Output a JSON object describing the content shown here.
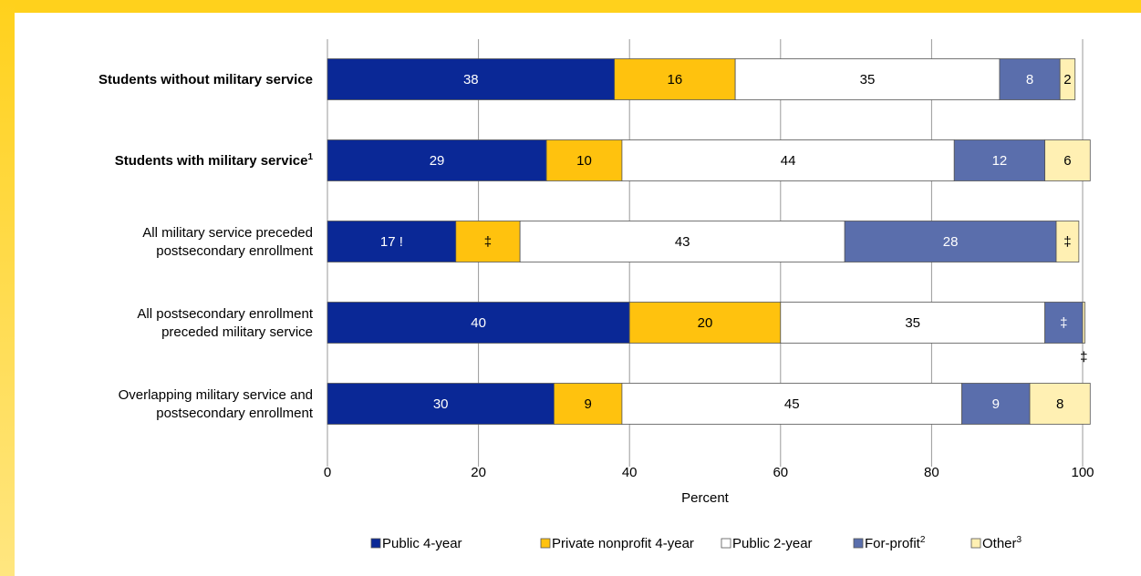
{
  "chart_data": {
    "type": "bar",
    "orientation": "horizontal",
    "stacked": true,
    "xlabel": "Percent",
    "xlim": [
      0,
      100
    ],
    "xticks": [
      0,
      20,
      40,
      60,
      80,
      100
    ],
    "grid": true,
    "legend_position": "bottom",
    "categories": [
      {
        "label": [
          "Students without military service"
        ],
        "bold": true,
        "sup": ""
      },
      {
        "label": [
          "Students with military service"
        ],
        "bold": true,
        "sup": "1"
      },
      {
        "label": [
          "All military service preceded",
          "postsecondary enrollment"
        ],
        "bold": false,
        "sup": ""
      },
      {
        "label": [
          "All postsecondary enrollment",
          "preceded military service"
        ],
        "bold": false,
        "sup": ""
      },
      {
        "label": [
          "Overlapping military service and",
          "postsecondary enrollment"
        ],
        "bold": false,
        "sup": ""
      }
    ],
    "series": [
      {
        "name": "Public 4-year",
        "sup": "",
        "color": "#0a2896",
        "text_color": "#ffffff",
        "values": [
          38,
          29,
          17,
          40,
          30
        ],
        "labels": [
          "38",
          "29",
          "17 !",
          "40",
          "30"
        ]
      },
      {
        "name": "Private nonprofit 4-year",
        "sup": "",
        "color": "#ffc20e",
        "text_color": "#000000",
        "values": [
          16,
          10,
          8.5,
          20,
          9
        ],
        "labels": [
          "16",
          "10",
          "‡",
          "20",
          "9"
        ]
      },
      {
        "name": "Public 2-year",
        "sup": "",
        "color": "#ffffff",
        "text_color": "#000000",
        "values": [
          35,
          44,
          43,
          35,
          45
        ],
        "labels": [
          "35",
          "44",
          "43",
          "35",
          "45"
        ]
      },
      {
        "name": "For-profit",
        "sup": "2",
        "color": "#5a6eac",
        "text_color": "#ffffff",
        "values": [
          8,
          12,
          28,
          5,
          9
        ],
        "labels": [
          "8",
          "12",
          "28",
          "‡",
          "9"
        ]
      },
      {
        "name": "Other",
        "sup": "3",
        "color": "#fff0b3",
        "text_color": "#000000",
        "values": [
          2,
          6,
          3,
          0.3,
          8
        ],
        "labels": [
          "2",
          "6",
          "‡",
          "‡",
          "8"
        ]
      }
    ]
  },
  "colors": {
    "frame": "#ffd11c",
    "grid": "#999999",
    "bar_outline": "#555555"
  }
}
